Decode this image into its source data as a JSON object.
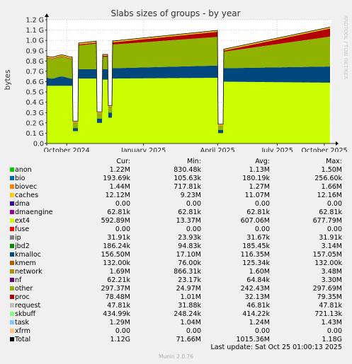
{
  "chart_data": {
    "type": "area",
    "title": "Slabs sizes of groups - by year",
    "ylabel": "bytes",
    "watermark": "RRDTOOL / TOBI OETIKER",
    "y_ticks": [
      "0.0",
      "0.1 G",
      "0.2 G",
      "0.3 G",
      "0.4 G",
      "0.5 G",
      "0.6 G",
      "0.7 G",
      "0.8 G",
      "0.9 G",
      "1.0 G",
      "1.1 G",
      "1.2 G"
    ],
    "ylim": [
      0,
      1.2
    ],
    "x_ticks": [
      "October 2024",
      "January 2025",
      "April 2025",
      "July 2025",
      "October 2025"
    ],
    "x_tick_pos": [
      0.07,
      0.34,
      0.6,
      0.81,
      0.975
    ],
    "stack_order": [
      "ext4",
      "kmalloc",
      "other",
      "proc",
      "network",
      "caches"
    ],
    "stack_values_G": {
      "ext4": [
        0.56,
        0.63,
        0.64,
        0.64,
        0.59
      ],
      "kmalloc": [
        0.08,
        0.09,
        0.12,
        0.14,
        0.157
      ],
      "other": [
        0.18,
        0.24,
        0.27,
        0.21,
        0.297
      ],
      "proc": [
        0.01,
        0.02,
        0.05,
        0.06,
        0.078
      ]
    },
    "series": [
      {
        "name": "anon",
        "color": "#00cc00"
      },
      {
        "name": "bio",
        "color": "#0066b3"
      },
      {
        "name": "biovec",
        "color": "#ff8000"
      },
      {
        "name": "caches",
        "color": "#ffcc00"
      },
      {
        "name": "dma",
        "color": "#330099"
      },
      {
        "name": "dmaengine",
        "color": "#990099"
      },
      {
        "name": "ext4",
        "color": "#ccff00"
      },
      {
        "name": "fuse",
        "color": "#ff0000"
      },
      {
        "name": "ip",
        "color": "#808080"
      },
      {
        "name": "jbd2",
        "color": "#008f00"
      },
      {
        "name": "kmalloc",
        "color": "#00487d"
      },
      {
        "name": "kmem",
        "color": "#b35a00"
      },
      {
        "name": "network",
        "color": "#b38f00"
      },
      {
        "name": "nf",
        "color": "#6b006b"
      },
      {
        "name": "other",
        "color": "#8fb300"
      },
      {
        "name": "proc",
        "color": "#b30000"
      },
      {
        "name": "request",
        "color": "#bebebe"
      },
      {
        "name": "skbuff",
        "color": "#80ff80"
      },
      {
        "name": "task",
        "color": "#80c9ff"
      },
      {
        "name": "xfrm",
        "color": "#ffc080"
      }
    ]
  },
  "legend": {
    "headers": {
      "cur": "Cur:",
      "min": "Min:",
      "avg": "Avg:",
      "max": "Max:"
    },
    "rows": [
      {
        "name": "anon",
        "cur": "1.22M",
        "min": "830.48k",
        "avg": "1.13M",
        "max": "1.50M"
      },
      {
        "name": "bio",
        "cur": "193.69k",
        "min": "105.63k",
        "avg": "180.19k",
        "max": "256.60k"
      },
      {
        "name": "biovec",
        "cur": "1.44M",
        "min": "717.81k",
        "avg": "1.27M",
        "max": "1.66M"
      },
      {
        "name": "caches",
        "cur": "12.12M",
        "min": "9.23M",
        "avg": "11.07M",
        "max": "12.16M"
      },
      {
        "name": "dma",
        "cur": "0.00",
        "min": "0.00",
        "avg": "0.00",
        "max": "0.00"
      },
      {
        "name": "dmaengine",
        "cur": "62.81k",
        "min": "62.81k",
        "avg": "62.81k",
        "max": "62.81k"
      },
      {
        "name": "ext4",
        "cur": "592.89M",
        "min": "13.37M",
        "avg": "607.06M",
        "max": "677.79M"
      },
      {
        "name": "fuse",
        "cur": "0.00",
        "min": "0.00",
        "avg": "0.00",
        "max": "0.00"
      },
      {
        "name": "ip",
        "cur": "31.91k",
        "min": "23.93k",
        "avg": "31.67k",
        "max": "31.91k"
      },
      {
        "name": "jbd2",
        "cur": "186.24k",
        "min": "94.83k",
        "avg": "185.45k",
        "max": "3.14M"
      },
      {
        "name": "kmalloc",
        "cur": "156.50M",
        "min": "17.10M",
        "avg": "116.35M",
        "max": "157.05M"
      },
      {
        "name": "kmem",
        "cur": "132.00k",
        "min": "76.00k",
        "avg": "125.34k",
        "max": "132.00k"
      },
      {
        "name": "network",
        "cur": "1.69M",
        "min": "866.31k",
        "avg": "1.60M",
        "max": "3.48M"
      },
      {
        "name": "nf",
        "cur": "62.21k",
        "min": "23.17k",
        "avg": "64.84k",
        "max": "3.30M"
      },
      {
        "name": "other",
        "cur": "297.37M",
        "min": "24.97M",
        "avg": "242.43M",
        "max": "297.69M"
      },
      {
        "name": "proc",
        "cur": "78.48M",
        "min": "1.01M",
        "avg": "32.13M",
        "max": "79.35M"
      },
      {
        "name": "request",
        "cur": "47.81k",
        "min": "31.88k",
        "avg": "46.81k",
        "max": "47.81k"
      },
      {
        "name": "skbuff",
        "cur": "434.99k",
        "min": "248.24k",
        "avg": "414.22k",
        "max": "721.13k"
      },
      {
        "name": "task",
        "cur": "1.29M",
        "min": "1.04M",
        "avg": "1.24M",
        "max": "1.43M"
      },
      {
        "name": "xfrm",
        "cur": "0.00",
        "min": "0.00",
        "avg": "0.00",
        "max": "0.00"
      },
      {
        "name": "Total",
        "cur": "1.12G",
        "min": "71.66M",
        "avg": "1015.36M",
        "max": "1.18G"
      }
    ]
  },
  "last_update": "Last update: Sat Oct 25 01:00:13 2025",
  "footer": "Munin 2.0.76"
}
